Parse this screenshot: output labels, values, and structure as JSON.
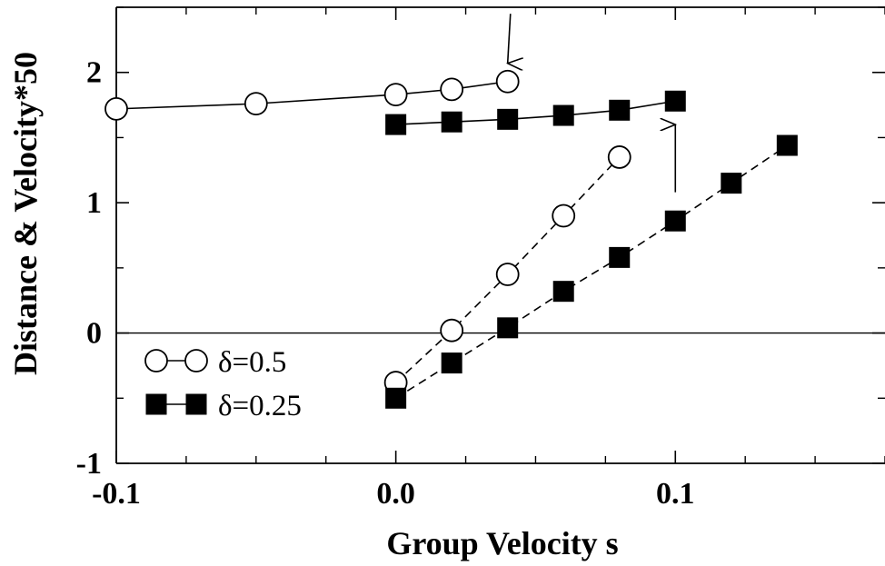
{
  "chart_data": {
    "type": "line",
    "xlabel": "Group Velocity s",
    "ylabel": "Distance & Velocity*50",
    "xlim": [
      -0.1,
      0.175
    ],
    "ylim": [
      -1,
      2.5
    ],
    "xticks": [
      {
        "value": -0.1,
        "label": "-0.1"
      },
      {
        "value": 0.0,
        "label": "0.0"
      },
      {
        "value": 0.1,
        "label": "0.1"
      }
    ],
    "yticks": [
      {
        "value": -1,
        "label": "-1"
      },
      {
        "value": 0,
        "label": "0"
      },
      {
        "value": 1,
        "label": "1"
      },
      {
        "value": 2,
        "label": "2"
      }
    ],
    "zero_line": true,
    "legend_position": "bottom-left",
    "series": [
      {
        "name": "δ=0.5",
        "marker": "open-circle",
        "line": "solid",
        "in_legend": true,
        "x": [
          -0.1,
          -0.05,
          0.0,
          0.02,
          0.04
        ],
        "y": [
          1.72,
          1.76,
          1.83,
          1.87,
          1.93
        ]
      },
      {
        "name": "δ=0.25",
        "marker": "filled-square",
        "line": "solid",
        "in_legend": true,
        "x": [
          0.0,
          0.02,
          0.04,
          0.06,
          0.08,
          0.1
        ],
        "y": [
          1.6,
          1.62,
          1.64,
          1.67,
          1.71,
          1.78
        ]
      },
      {
        "name": "",
        "marker": "open-circle",
        "line": "dashed",
        "in_legend": false,
        "x": [
          0.0,
          0.02,
          0.04,
          0.06,
          0.08
        ],
        "y": [
          -0.38,
          0.02,
          0.45,
          0.9,
          1.35
        ]
      },
      {
        "name": "",
        "marker": "filled-square",
        "line": "dashed",
        "in_legend": false,
        "x": [
          0.0,
          0.02,
          0.04,
          0.06,
          0.08,
          0.1,
          0.12,
          0.14
        ],
        "y": [
          -0.5,
          -0.23,
          0.04,
          0.32,
          0.58,
          0.86,
          1.15,
          1.44
        ]
      }
    ],
    "annotations": [
      {
        "type": "arrow",
        "from": [
          0.041,
          2.45
        ],
        "to": [
          0.04,
          2.07
        ]
      },
      {
        "type": "arrow",
        "from": [
          0.1,
          1.08
        ],
        "to": [
          0.1,
          1.6
        ]
      }
    ]
  }
}
